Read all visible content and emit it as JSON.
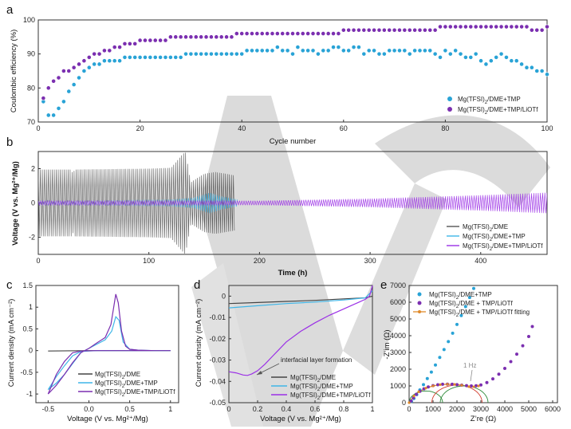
{
  "watermark": "VCH",
  "chart_data": [
    {
      "panel": "a",
      "type": "scatter",
      "xlabel": "Cycle number",
      "ylabel": "Coulombic efficiency (%)",
      "xlim": [
        0,
        100
      ],
      "ylim": [
        70,
        100
      ],
      "xticks": [
        0,
        20,
        40,
        60,
        80,
        100
      ],
      "yticks": [
        70,
        80,
        90,
        100
      ],
      "legend_position": "bottom-right",
      "series": [
        {
          "name": "Mg(TFSI)2/DME+TMP",
          "color": "#29a3d6",
          "cycles_from": 1,
          "values": [
            76,
            72,
            72,
            74,
            76,
            79,
            81,
            83,
            85,
            86,
            87,
            87,
            88,
            88,
            88,
            88,
            89,
            89,
            89,
            89,
            89,
            89,
            89,
            89,
            89,
            89,
            89,
            89,
            90,
            90,
            90,
            90,
            90,
            90,
            90,
            90,
            90,
            90,
            90,
            90,
            91,
            91,
            91,
            91,
            91,
            91,
            92,
            91,
            91,
            90,
            92,
            91,
            91,
            91,
            90,
            91,
            91,
            92,
            92,
            91,
            91,
            92,
            92,
            90,
            91,
            91,
            90,
            90,
            91,
            91,
            91,
            91,
            90,
            91,
            91,
            91,
            91,
            90,
            89,
            91,
            90,
            91,
            90,
            89,
            89,
            90,
            88,
            87,
            88,
            89,
            90,
            89,
            88,
            88,
            87,
            86,
            86,
            85,
            85,
            84
          ]
        },
        {
          "name": "Mg(TFSI)2/DME+TMP/LiOTf",
          "color": "#7b2fb0",
          "cycles_from": 1,
          "values": [
            77,
            80,
            82,
            83,
            85,
            85,
            86,
            87,
            88,
            89,
            90,
            90,
            91,
            91,
            92,
            92,
            93,
            93,
            93,
            94,
            94,
            94,
            94,
            94,
            94,
            95,
            95,
            95,
            95,
            95,
            95,
            95,
            95,
            95,
            95,
            95,
            95,
            95,
            96,
            96,
            96,
            96,
            96,
            96,
            96,
            96,
            96,
            96,
            96,
            96,
            96,
            96,
            96,
            96,
            96,
            96,
            96,
            96,
            96,
            97,
            97,
            97,
            97,
            97,
            97,
            97,
            97,
            97,
            97,
            97,
            97,
            97,
            97,
            97,
            97,
            97,
            97,
            97,
            98,
            98,
            98,
            98,
            98,
            98,
            98,
            98,
            98,
            98,
            98,
            98,
            98,
            98,
            98,
            98,
            98,
            98,
            97,
            97,
            97,
            98
          ]
        }
      ]
    },
    {
      "panel": "b",
      "type": "line",
      "xlabel": "Time (h)",
      "ylabel": "Voltage (V vs. Mg²⁺/Mg)",
      "xlim": [
        0,
        460
      ],
      "ylim": [
        -3,
        3
      ],
      "xticks": [
        0,
        100,
        200,
        300,
        400
      ],
      "yticks": [
        -2,
        0,
        2
      ],
      "legend_position": "bottom-right",
      "series": [
        {
          "name": "Mg(TFSI)2/DME",
          "color": "#555555",
          "envelope": {
            "t": [
              0,
              30,
              31,
              33,
              100,
              120,
              130,
              133,
              138,
              140,
              150,
              160,
              170,
              178
            ],
            "amplitude": [
              1.95,
              1.95,
              1.7,
              1.95,
              2.0,
              2.05,
              2.8,
              3.0,
              1.2,
              1.3,
              1.7,
              1.8,
              1.7,
              1.6
            ]
          }
        },
        {
          "name": "Mg(TFSI)2/DME+TMP",
          "color": "#3fb6e8",
          "envelope": {
            "t": [
              0,
              60,
              120,
              140,
              155,
              165,
              180
            ],
            "amplitude": [
              0.12,
              0.15,
              0.2,
              0.3,
              0.6,
              0.4,
              0.2
            ]
          }
        },
        {
          "name": "Mg(TFSI)2/DME+TMP/LiOTf",
          "color": "#9b30e6",
          "envelope": {
            "t": [
              0,
              100,
              200,
              300,
              400,
              460
            ],
            "amplitude": [
              0.12,
              0.12,
              0.13,
              0.25,
              0.45,
              0.6
            ]
          }
        }
      ]
    },
    {
      "panel": "c",
      "type": "line",
      "xlabel": "Voltage (V vs. Mg²⁺/Mg)",
      "ylabel": "Current density (mA cm⁻²)",
      "xlim": [
        -0.65,
        1.1
      ],
      "ylim": [
        -1.2,
        1.5
      ],
      "xticks": [
        -0.5,
        0.0,
        0.5,
        1.0
      ],
      "yticks": [
        -1,
        -0.5,
        0,
        0.5,
        1,
        1.5
      ],
      "legend_position": "bottom-right",
      "series": [
        {
          "name": "Mg(TFSI)2/DME",
          "color": "#444444",
          "x": [
            -0.5,
            0.0,
            0.5,
            1.0
          ],
          "y": [
            -0.01,
            0.0,
            0.0,
            0.0
          ]
        },
        {
          "name": "Mg(TFSI)2/DME+TMP",
          "color": "#3fb6e8",
          "x": [
            -0.5,
            -0.4,
            -0.3,
            -0.2,
            -0.1,
            0.0,
            0.1,
            0.2,
            0.28,
            0.33,
            0.37,
            0.42,
            0.5,
            0.6,
            0.8,
            1.0,
            0.8,
            0.5,
            0.3,
            0.1,
            -0.1,
            -0.2,
            -0.3,
            -0.4,
            -0.5
          ],
          "y": [
            -0.9,
            -0.75,
            -0.55,
            -0.3,
            -0.05,
            0.05,
            0.15,
            0.25,
            0.45,
            0.78,
            0.7,
            0.2,
            0.03,
            0.01,
            0.0,
            0.0,
            0.0,
            0.0,
            0.0,
            0.0,
            -0.02,
            -0.12,
            -0.35,
            -0.6,
            -0.9
          ]
        },
        {
          "name": "Mg(TFSI)2/DME+TMP/LiOTf",
          "color": "#7b2fb0",
          "x": [
            -0.5,
            -0.4,
            -0.3,
            -0.2,
            -0.1,
            0.0,
            0.1,
            0.2,
            0.27,
            0.33,
            0.36,
            0.4,
            0.45,
            0.5,
            0.6,
            0.8,
            1.0,
            0.8,
            0.5,
            0.3,
            0.1,
            -0.1,
            -0.2,
            -0.3,
            -0.4,
            -0.5
          ],
          "y": [
            -1.0,
            -0.8,
            -0.55,
            -0.28,
            -0.05,
            0.05,
            0.18,
            0.3,
            0.6,
            1.3,
            1.1,
            0.45,
            0.1,
            0.03,
            0.01,
            0.0,
            0.0,
            0.0,
            0.0,
            0.0,
            0.0,
            -0.01,
            -0.05,
            -0.25,
            -0.55,
            -1.0
          ]
        }
      ]
    },
    {
      "panel": "d",
      "type": "line",
      "xlabel": "Voltage (V vs. Mg²⁺/Mg)",
      "ylabel": "Current density (mA cm⁻²)",
      "xlim": [
        0,
        1.0
      ],
      "ylim": [
        -0.05,
        0.005
      ],
      "xticks": [
        0,
        0.2,
        0.4,
        0.6,
        0.8,
        1
      ],
      "yticks": [
        0,
        -0.01,
        -0.02,
        -0.03,
        -0.04,
        -0.05
      ],
      "legend_position": "bottom-right",
      "annotation": "interfacial layer formation",
      "series": [
        {
          "name": "Mg(TFSI)2/DME",
          "color": "#444444",
          "x": [
            0,
            0.2,
            0.4,
            0.6,
            0.8,
            0.95,
            1.0
          ],
          "y": [
            -0.0035,
            -0.003,
            -0.0025,
            -0.002,
            -0.0013,
            -0.0008,
            0.0
          ]
        },
        {
          "name": "Mg(TFSI)2/DME+TMP",
          "color": "#3fb6e8",
          "x": [
            0,
            0.2,
            0.4,
            0.6,
            0.8,
            0.95,
            1.0
          ],
          "y": [
            -0.0055,
            -0.0045,
            -0.0035,
            -0.0028,
            -0.0018,
            -0.0008,
            0.0025
          ]
        },
        {
          "name": "Mg(TFSI)2/DME+TMP/LiOTf",
          "color": "#9b30e6",
          "x": [
            0,
            0.05,
            0.1,
            0.13,
            0.16,
            0.2,
            0.25,
            0.3,
            0.35,
            0.4,
            0.5,
            0.6,
            0.7,
            0.8,
            0.9,
            0.95,
            0.98,
            1.0
          ],
          "y": [
            -0.0355,
            -0.036,
            -0.037,
            -0.0372,
            -0.0365,
            -0.035,
            -0.032,
            -0.0285,
            -0.025,
            -0.0215,
            -0.0165,
            -0.0125,
            -0.009,
            -0.006,
            -0.003,
            -0.0015,
            0.0,
            0.005
          ]
        }
      ]
    },
    {
      "panel": "e",
      "type": "scatter",
      "xlabel": "Z’re (Ω)",
      "ylabel": "-Z’im (Ω)",
      "xlim": [
        0,
        6200
      ],
      "ylim": [
        0,
        7000
      ],
      "xticks": [
        0,
        1000,
        2000,
        3000,
        4000,
        5000,
        6000
      ],
      "yticks": [
        0,
        1000,
        2000,
        3000,
        4000,
        5000,
        6000,
        7000
      ],
      "legend_position": "top-left",
      "annotation": "1 Hz",
      "series": [
        {
          "name": "Mg(TFSI)2/DME+TMP",
          "color": "#29a3d6",
          "x": [
            100,
            200,
            320,
            450,
            600,
            760,
            930,
            1100,
            1280,
            1460,
            1640,
            1820,
            2000,
            2180,
            2360,
            2530,
            2700
          ],
          "y": [
            80,
            250,
            480,
            760,
            1080,
            1440,
            1830,
            2250,
            2700,
            3170,
            3650,
            4150,
            4670,
            5200,
            5740,
            6280,
            6820
          ]
        },
        {
          "name": "Mg(TFSI)2/DME + TMP/LiOTf",
          "color": "#7b2fb0",
          "x": [
            80,
            180,
            300,
            450,
            620,
            800,
            1000,
            1200,
            1400,
            1600,
            1800,
            2000,
            2200,
            2400,
            2600,
            2800,
            3000,
            3250,
            3500,
            3750,
            4000,
            4250,
            4500,
            4750,
            5000,
            5150
          ],
          "y": [
            100,
            300,
            500,
            680,
            830,
            940,
            1020,
            1070,
            1100,
            1110,
            1100,
            1080,
            1050,
            1020,
            1000,
            1010,
            1060,
            1200,
            1420,
            1700,
            2050,
            2450,
            2900,
            3400,
            3950,
            4550
          ]
        },
        {
          "name": "Mg(TFSI)2/DME + TMP/LiOTf fitting",
          "color": "#e08a2a",
          "x": [
            0,
            200,
            400,
            700,
            1000,
            1300,
            1600,
            1900,
            2200,
            2500,
            2700,
            2900
          ],
          "y": [
            0,
            400,
            650,
            870,
            1000,
            1080,
            1100,
            1090,
            1040,
            960,
            950,
            1000
          ]
        }
      ]
    }
  ]
}
